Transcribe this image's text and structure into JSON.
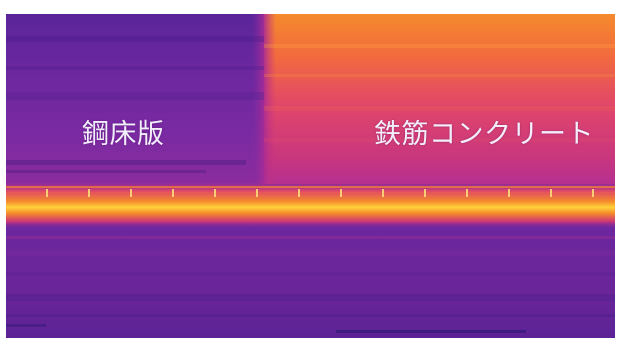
{
  "image": {
    "labels": {
      "steel_deck": "鋼床版",
      "reinforced_concrete": "鉄筋コンクリート"
    },
    "palette": {
      "cold_dark": "#3a1a7a",
      "cold": "#5a2397",
      "cool": "#7a2aa0",
      "warm_magenta": "#b52d9a",
      "warm_pink": "#e0436c",
      "hot_orange": "#f27a2e",
      "hottest_yellow": "#ffd23a",
      "label_text": "#f3eefb",
      "frame_border": "#ffffff"
    }
  }
}
